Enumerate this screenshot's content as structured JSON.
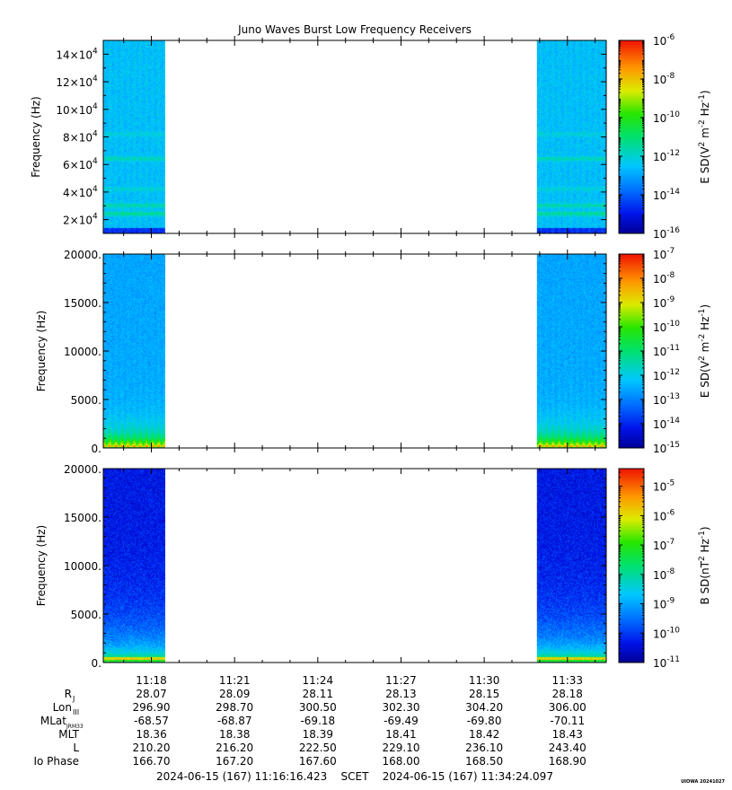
{
  "title": "Juno Waves Burst Low Frequency Receivers",
  "chart_data": [
    {
      "type": "heatmap",
      "ylabel": "Frequency (Hz)",
      "ylim": [
        10000,
        150000
      ],
      "ytick_mantissas": [
        "2",
        "4",
        "6",
        "8",
        "10",
        "12",
        "14"
      ],
      "ytick_exponent": "4",
      "ytick_times": "×10",
      "colorbar": {
        "label_prefix": "E SD(V",
        "label_sup1": "2",
        "label_mid": " m",
        "label_sup2": "-2",
        "label_mid2": " Hz",
        "label_sup3": "-1",
        "label_suffix": ")",
        "log_range": [
          -16,
          -6
        ],
        "ticks": [
          "-6",
          "-8",
          "-10",
          "-12",
          "-14",
          "-16"
        ]
      },
      "bands": [
        {
          "freq": 64000,
          "strength": 0.55
        },
        {
          "freq": 82000,
          "strength": 0.3
        },
        {
          "freq": 30000,
          "strength": 0.6
        },
        {
          "freq": 24000,
          "strength": 0.75
        },
        {
          "freq": 42000,
          "strength": 0.35
        }
      ]
    },
    {
      "type": "heatmap",
      "ylabel": "Frequency (Hz)",
      "ylim": [
        0,
        20000
      ],
      "yticks": [
        "0.",
        "5000.",
        "10000.",
        "15000.",
        "20000."
      ],
      "colorbar": {
        "label_prefix": "E SD(V",
        "label_sup1": "2",
        "label_mid": " m",
        "label_sup2": "-2",
        "label_mid2": " Hz",
        "label_sup3": "-1",
        "label_suffix": ")",
        "log_range": [
          -15,
          -7
        ],
        "ticks": [
          "-7",
          "-8",
          "-9",
          "-10",
          "-11",
          "-12",
          "-13",
          "-14",
          "-15"
        ]
      }
    },
    {
      "type": "heatmap",
      "ylabel": "Frequency (Hz)",
      "ylim": [
        0,
        20000
      ],
      "yticks": [
        "0.",
        "5000.",
        "10000.",
        "15000.",
        "20000."
      ],
      "colorbar": {
        "label_prefix": "B SD(nT",
        "label_sup1": "2",
        "label_mid": " Hz",
        "label_sup2": "-1",
        "label_mid2": "",
        "label_sup3": "",
        "label_suffix": ")",
        "log_range": [
          -11,
          -4.4
        ],
        "ticks": [
          "-5",
          "-6",
          "-7",
          "-8",
          "-9",
          "-10",
          "-11"
        ]
      }
    }
  ],
  "time_axis": {
    "start": "11:16:16",
    "end": "11:34:24",
    "data_segments": [
      [
        "11:16:16",
        "11:18:30"
      ],
      [
        "11:31:54",
        "11:34:24"
      ]
    ],
    "tick_labels": [
      "11:18",
      "11:21",
      "11:24",
      "11:27",
      "11:30",
      "11:33"
    ]
  },
  "ephemeris": {
    "rows": [
      {
        "label": "R",
        "sub": "J",
        "values": [
          "28.07",
          "28.09",
          "28.11",
          "28.13",
          "28.15",
          "28.18"
        ]
      },
      {
        "label": "Lon",
        "sub": "III",
        "values": [
          "296.90",
          "298.70",
          "300.50",
          "302.30",
          "304.20",
          "306.00"
        ]
      },
      {
        "label": "MLat",
        "sub": "JRM33",
        "values": [
          "-68.57",
          "-68.87",
          "-69.18",
          "-69.49",
          "-69.80",
          "-70.11"
        ]
      },
      {
        "label": "MLT",
        "sub": "",
        "values": [
          "18.36",
          "18.38",
          "18.39",
          "18.41",
          "18.42",
          "18.43"
        ]
      },
      {
        "label": "L",
        "sub": "",
        "values": [
          "210.20",
          "216.20",
          "222.50",
          "229.10",
          "236.10",
          "243.40"
        ]
      },
      {
        "label": "Io Phase",
        "sub": "",
        "values": [
          "166.70",
          "167.20",
          "167.60",
          "168.00",
          "168.50",
          "168.90"
        ]
      }
    ]
  },
  "footer": {
    "range_text": "2024-06-15 (167) 11:16:16.423    SCET    2024-06-15 (167) 11:34:24.097",
    "stamp": "UIOWA 20241027"
  }
}
